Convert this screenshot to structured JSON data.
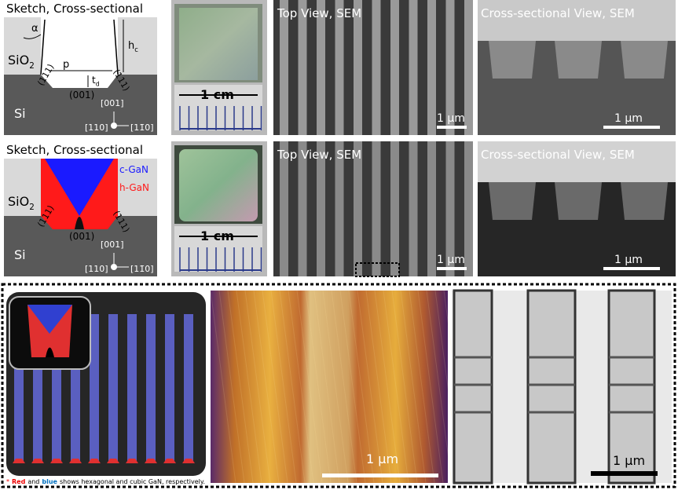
{
  "row1": {
    "sketch": {
      "title": "Sketch, Cross-sectional",
      "alpha": "α",
      "hc": {
        "main": "h",
        "sub": "c"
      },
      "sio2": {
        "main": "SiO",
        "sub": "2"
      },
      "p": "p",
      "td": {
        "main": "t",
        "sub": "d"
      },
      "facet_left": "(111)",
      "facet_right": "(111)",
      "bottom": "(001)",
      "dir_001": "[001]",
      "si": "Si",
      "dir_110": "[110]",
      "dir_1m10": "[11̄0]"
    },
    "photo": {
      "scale": "1 cm"
    },
    "top_sem": {
      "title": "Top View, SEM",
      "scale": "1 µm"
    },
    "cross_sem": {
      "title": "Cross-sectional View, SEM",
      "scale": "1 µm"
    }
  },
  "row2": {
    "sketch": {
      "title": "Sketch, Cross-sectional",
      "c_gan": "c-GaN",
      "h_gan": "h-GaN",
      "sio2": {
        "main": "SiO",
        "sub": "2"
      },
      "facet_left": "(111)",
      "facet_right": "(111)",
      "bottom": "(001)",
      "dir_001": "[001]",
      "si": "Si",
      "dir_110": "[110]",
      "dir_1m10": "[11̄0]"
    },
    "photo": {
      "scale": "1 cm"
    },
    "top_sem": {
      "title": "Top View, SEM",
      "scale": "1 µm"
    },
    "cross_sem": {
      "title": "Cross-sectional View, SEM",
      "scale": "1 µm"
    }
  },
  "bottom": {
    "footnote": {
      "star": "*",
      "red": "Red",
      "and": "and",
      "blue": "blue",
      "rest": "shows hexagonal and cubic GaN, respectively."
    },
    "afm_scale": "1 µm",
    "tem_scale": "1 µm"
  }
}
